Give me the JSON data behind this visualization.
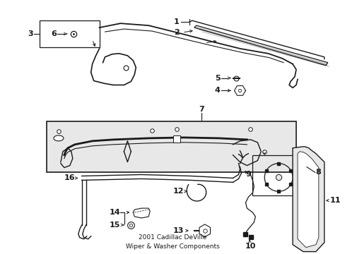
{
  "bg_color": "#ffffff",
  "line_color": "#1a1a1a",
  "light_gray": "#e8e8e8",
  "dark_gray": "#555555",
  "title_line1": "2001 Cadillac DeVille",
  "title_line2": "Wiper & Washer Components"
}
